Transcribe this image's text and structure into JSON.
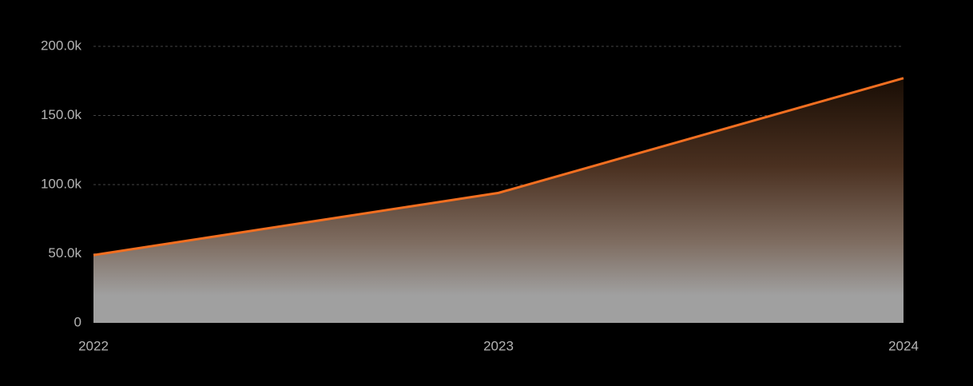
{
  "chart_data": {
    "type": "area",
    "x": [
      2022,
      2023,
      2024
    ],
    "series": [
      {
        "color": "#f26f21",
        "values": [
          49000,
          94000,
          177000
        ]
      }
    ],
    "xlim": [
      2022,
      2024
    ],
    "xticks": [
      2022,
      2023,
      2024
    ],
    "ylim": [
      0,
      200000
    ],
    "yticks": [
      0,
      {
        "value": 50000,
        "label": "50.0k"
      },
      {
        "value": 100000,
        "label": "100.0k"
      },
      {
        "value": 150000,
        "label": "150.0k"
      },
      {
        "value": 200000,
        "label": "200.0k"
      }
    ],
    "grid": true
  }
}
